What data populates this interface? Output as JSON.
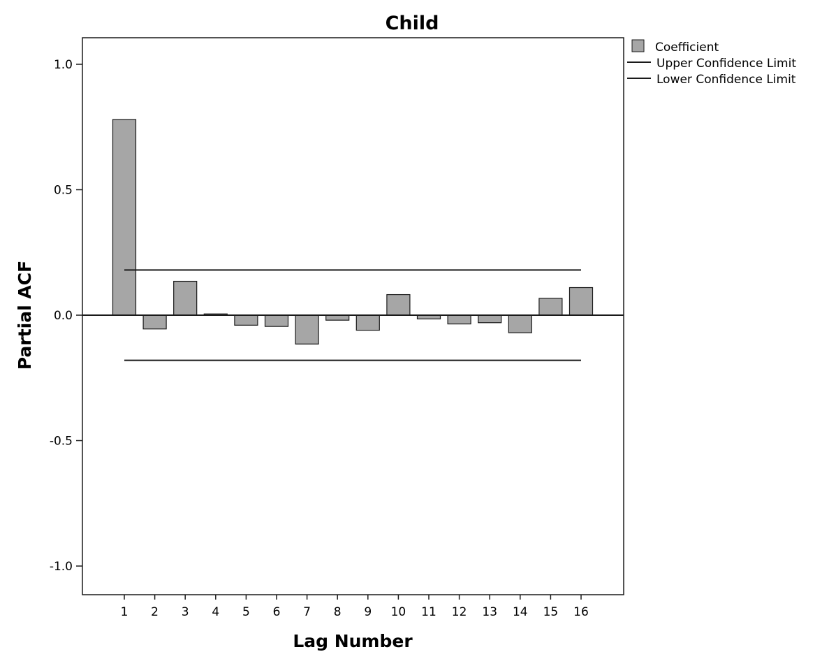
{
  "chart_data": {
    "type": "bar",
    "title": "Child",
    "xlabel": "Lag Number",
    "ylabel": "Partial ACF",
    "categories": [
      "1",
      "2",
      "3",
      "4",
      "5",
      "6",
      "7",
      "8",
      "9",
      "10",
      "11",
      "12",
      "13",
      "14",
      "15",
      "16"
    ],
    "series": [
      {
        "name": "Coefficient",
        "values": [
          0.78,
          -0.055,
          0.135,
          0.005,
          -0.04,
          -0.045,
          -0.115,
          -0.02,
          -0.06,
          0.082,
          -0.015,
          -0.035,
          -0.03,
          -0.07,
          0.067,
          0.11
        ]
      }
    ],
    "upper_confidence_limit": {
      "name": "Upper Confidence Limit",
      "value": 0.18
    },
    "lower_confidence_limit": {
      "name": "Lower Confidence Limit",
      "value": -0.18
    },
    "ylim": [
      -1.1,
      1.1
    ],
    "yticks": [
      {
        "value": 1.0,
        "label": "1.0"
      },
      {
        "value": 0.5,
        "label": "0.5"
      },
      {
        "value": 0.0,
        "label": "0.0"
      },
      {
        "value": -0.5,
        "label": "-0.5"
      },
      {
        "value": -1.0,
        "label": "-1.0"
      }
    ],
    "grid": false,
    "legend_position": "top-right",
    "colors": {
      "bar_fill": "#a6a6a6",
      "bar_stroke": "#1a1a1a",
      "line": "#1a1a1a"
    }
  }
}
